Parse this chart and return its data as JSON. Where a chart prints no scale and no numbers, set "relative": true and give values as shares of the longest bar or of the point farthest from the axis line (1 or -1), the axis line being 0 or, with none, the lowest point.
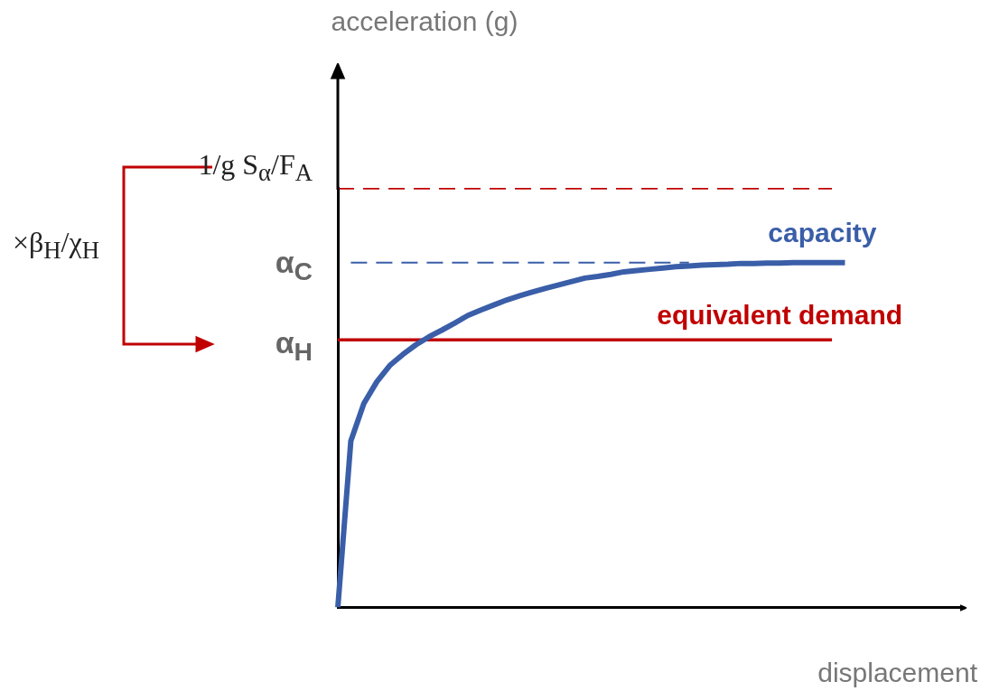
{
  "chart_data": {
    "type": "line",
    "relative": true,
    "xlabel": "displacement",
    "marker": "none",
    "legend": false,
    "categories": [
      null,
      null,
      null,
      null,
      null,
      null,
      null,
      null,
      null,
      null,
      null,
      null,
      null,
      null,
      null,
      null,
      null,
      null,
      null,
      null,
      null,
      null,
      null,
      null,
      null,
      null,
      null,
      null,
      null,
      null,
      null,
      null,
      null,
      null,
      null,
      null,
      null,
      null,
      null,
      null,
      null,
      null,
      null,
      null,
      null,
      null,
      null,
      null,
      null
    ],
    "series": [
      {
        "name": "capacity",
        "color": "#3a5ea8",
        "line_style": "solid",
        "values": [
          0,
          0.397,
          0.486,
          0.538,
          0.577,
          0.603,
          0.626,
          0.645,
          0.661,
          0.678,
          0.696,
          0.709,
          0.721,
          0.733,
          0.743,
          0.752,
          0.761,
          0.769,
          0.777,
          0.785,
          0.789,
          0.794,
          0.8,
          0.803,
          0.806,
          0.809,
          0.812,
          0.814,
          0.816,
          0.817,
          0.818,
          0.82,
          0.82,
          0.821,
          0.821,
          0.822,
          0.822,
          0.822,
          0.822,
          0.822,
          null,
          null,
          null,
          null,
          null,
          null,
          null,
          null,
          null
        ]
      },
      {
        "name": "equivalent demand",
        "color": "#c00000",
        "line_style": "solid",
        "values": [
          0.638,
          0.638,
          0.638,
          0.638,
          0.638,
          0.638,
          0.638,
          0.638,
          0.638,
          0.638,
          0.638,
          0.638,
          0.638,
          0.638,
          0.638,
          0.638,
          0.638,
          0.638,
          0.638,
          0.638,
          0.638,
          0.638,
          0.638,
          0.638,
          0.638,
          0.638,
          0.638,
          0.638,
          0.638,
          0.638,
          0.638,
          0.638,
          0.638,
          0.638,
          0.638,
          0.638,
          0.638,
          0.638,
          0.638,
          null,
          null,
          null,
          null,
          null,
          null,
          null,
          null,
          null,
          null
        ]
      },
      {
        "color": "#c00000",
        "line_style": "dashed",
        "values": [
          1,
          1,
          1,
          1,
          1,
          1,
          1,
          1,
          1,
          1,
          1,
          1,
          1,
          1,
          1,
          1,
          1,
          1,
          1,
          1,
          1,
          1,
          1,
          1,
          1,
          1,
          1,
          1,
          1,
          1,
          1,
          1,
          1,
          1,
          1,
          1,
          1,
          1,
          1,
          null,
          null,
          null,
          null,
          null,
          null,
          null,
          null,
          null,
          null
        ]
      },
      {
        "color": "#3a5ea8",
        "line_style": "dashed",
        "values": [
          null,
          0.822,
          0.822,
          0.822,
          0.822,
          0.822,
          0.822,
          0.822,
          0.822,
          0.822,
          0.822,
          0.822,
          0.822,
          0.822,
          0.822,
          0.822,
          0.822,
          0.822,
          0.822,
          0.822,
          0.822,
          0.822,
          0.822,
          0.822,
          0.822,
          0.822,
          0.822,
          0.822,
          null,
          null,
          null,
          null,
          null,
          null,
          null,
          null,
          null,
          null,
          null,
          null,
          null,
          null,
          null,
          null,
          null,
          null,
          null,
          null,
          null
        ]
      }
    ],
    "annotations": [
      "acceleration (g)",
      "1/g S$_{α}$/F$_{A}$",
      "α$_{C}$",
      "α$_{H}$",
      "×β$_{H}$/χ$_{H}$"
    ]
  }
}
